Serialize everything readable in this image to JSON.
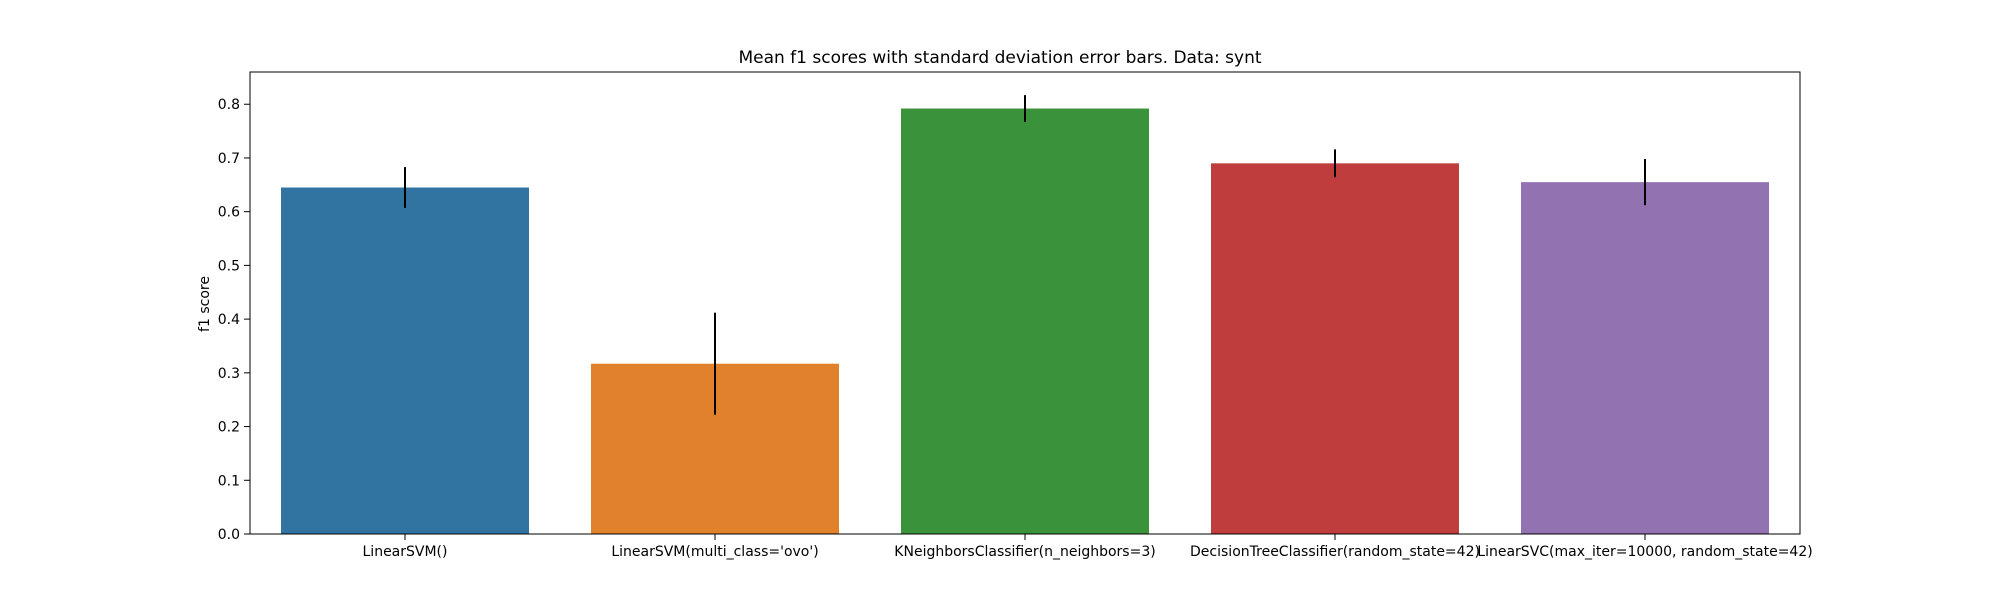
{
  "chart_data": {
    "type": "bar",
    "title": "Mean f1 scores with standard deviation error bars. Data: synt",
    "xlabel": "",
    "ylabel": "f1 score",
    "ylim": [
      0,
      0.86
    ],
    "yticks": [
      0.0,
      0.1,
      0.2,
      0.3,
      0.4,
      0.5,
      0.6,
      0.7,
      0.8
    ],
    "ytick_labels": [
      "0.0",
      "0.1",
      "0.2",
      "0.3",
      "0.4",
      "0.5",
      "0.6",
      "0.7",
      "0.8"
    ],
    "categories": [
      "LinearSVM()",
      "LinearSVM(multi_class='ovo')",
      "KNeighborsClassifier(n_neighbors=3)",
      "DecisionTreeClassifier(random_state=42)",
      "LinearSVC(max_iter=10000, random_state=42)"
    ],
    "values": [
      0.645,
      0.317,
      0.792,
      0.69,
      0.655
    ],
    "error": [
      0.038,
      0.095,
      0.025,
      0.026,
      0.043
    ],
    "colors": [
      "#3274a1",
      "#e1812c",
      "#3a923a",
      "#c03d3e",
      "#9372b2"
    ],
    "grid": false,
    "legend": "none"
  }
}
